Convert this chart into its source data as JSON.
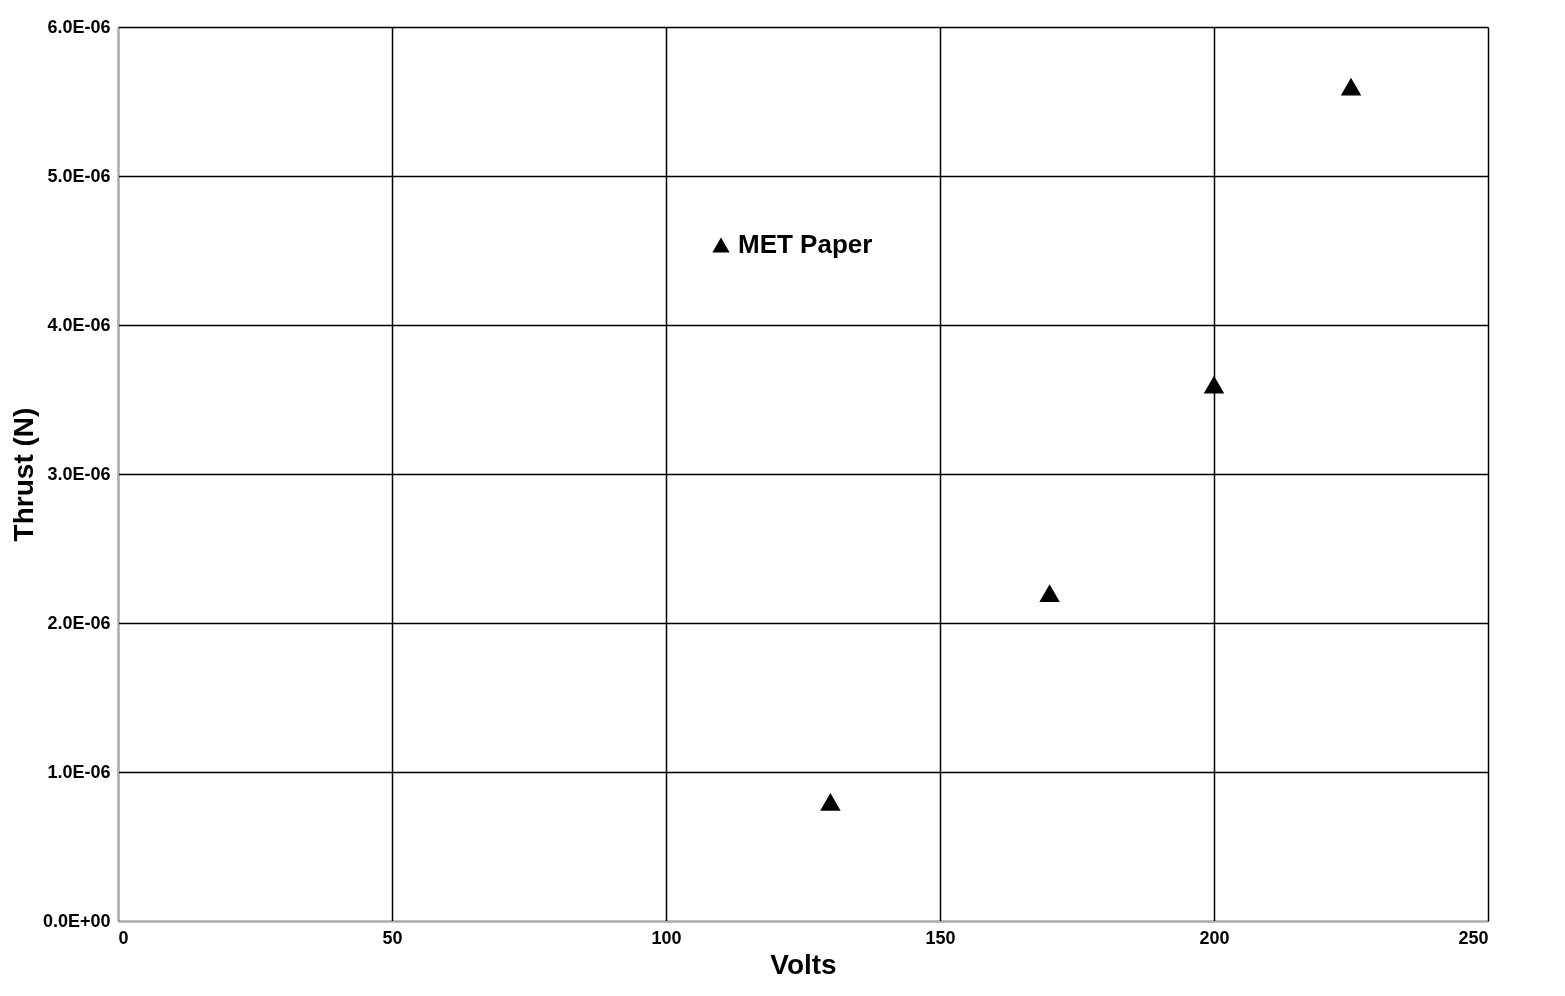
{
  "chart_data": {
    "type": "scatter",
    "xlabel": "Volts",
    "ylabel": "Thrust (N)",
    "x": [
      130,
      170,
      200,
      225
    ],
    "series": [
      {
        "name": "MET Paper",
        "color": "#000000",
        "values": [
          8e-07,
          2.2e-06,
          3.6e-06,
          5.6e-06
        ]
      }
    ],
    "xlim": [
      0,
      250
    ],
    "xticks": [
      0,
      50,
      100,
      150,
      200,
      250
    ],
    "ylim": [
      0,
      6e-06
    ],
    "yticks": [
      {
        "value": 0,
        "label": "0.0E+00"
      },
      {
        "value": 1e-06,
        "label": "1.0E-06"
      },
      {
        "value": 2e-06,
        "label": "2.0E-06"
      },
      {
        "value": 3e-06,
        "label": "3.0E-06"
      },
      {
        "value": 4e-06,
        "label": "4.0E-06"
      },
      {
        "value": 5e-06,
        "label": "5.0E-06"
      },
      {
        "value": 6e-06,
        "label": "6.0E-06"
      }
    ],
    "grid": true,
    "legend": "top left",
    "marker": "triangle"
  }
}
